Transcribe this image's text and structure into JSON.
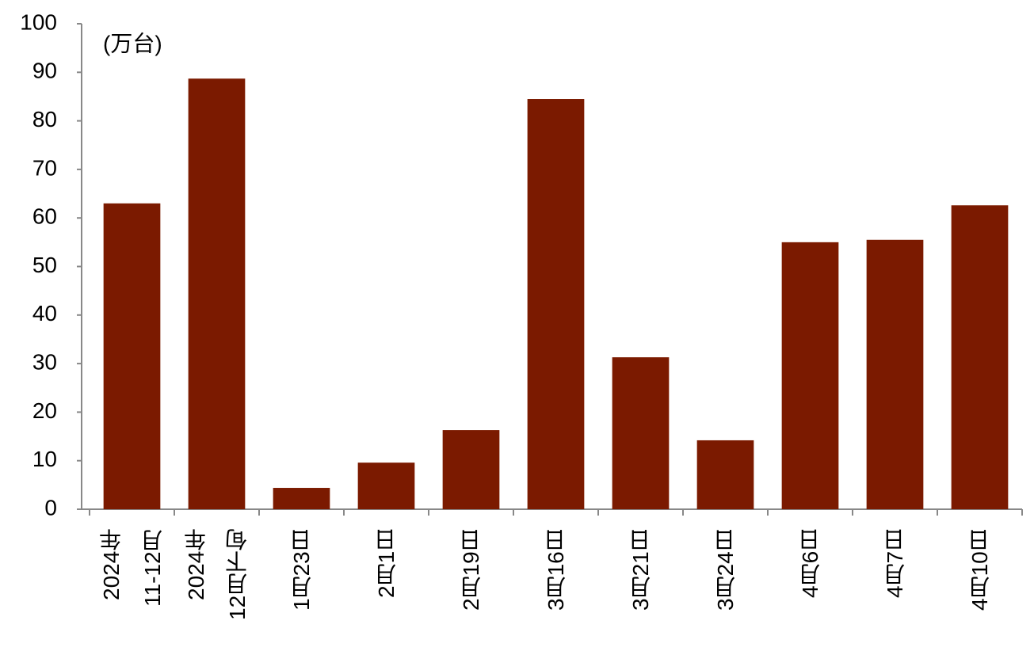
{
  "chart_data": {
    "type": "bar",
    "unit_label": "(万台)",
    "categories": [
      "2024年\n11-12月",
      "2024年\n12月下旬",
      "1月23日",
      "2月1日",
      "2月19日",
      "3月16日",
      "3月21日",
      "3月24日",
      "4月6日",
      "4月7日",
      "4月10日"
    ],
    "values": [
      63.0,
      88.7,
      4.4,
      9.6,
      16.3,
      84.5,
      31.3,
      14.2,
      55.0,
      55.5,
      62.6
    ],
    "color": "#7b1a00",
    "ylim": [
      0,
      100
    ],
    "yticks": [
      0,
      10,
      20,
      30,
      40,
      50,
      60,
      70,
      80,
      90,
      100
    ],
    "grid": false
  }
}
